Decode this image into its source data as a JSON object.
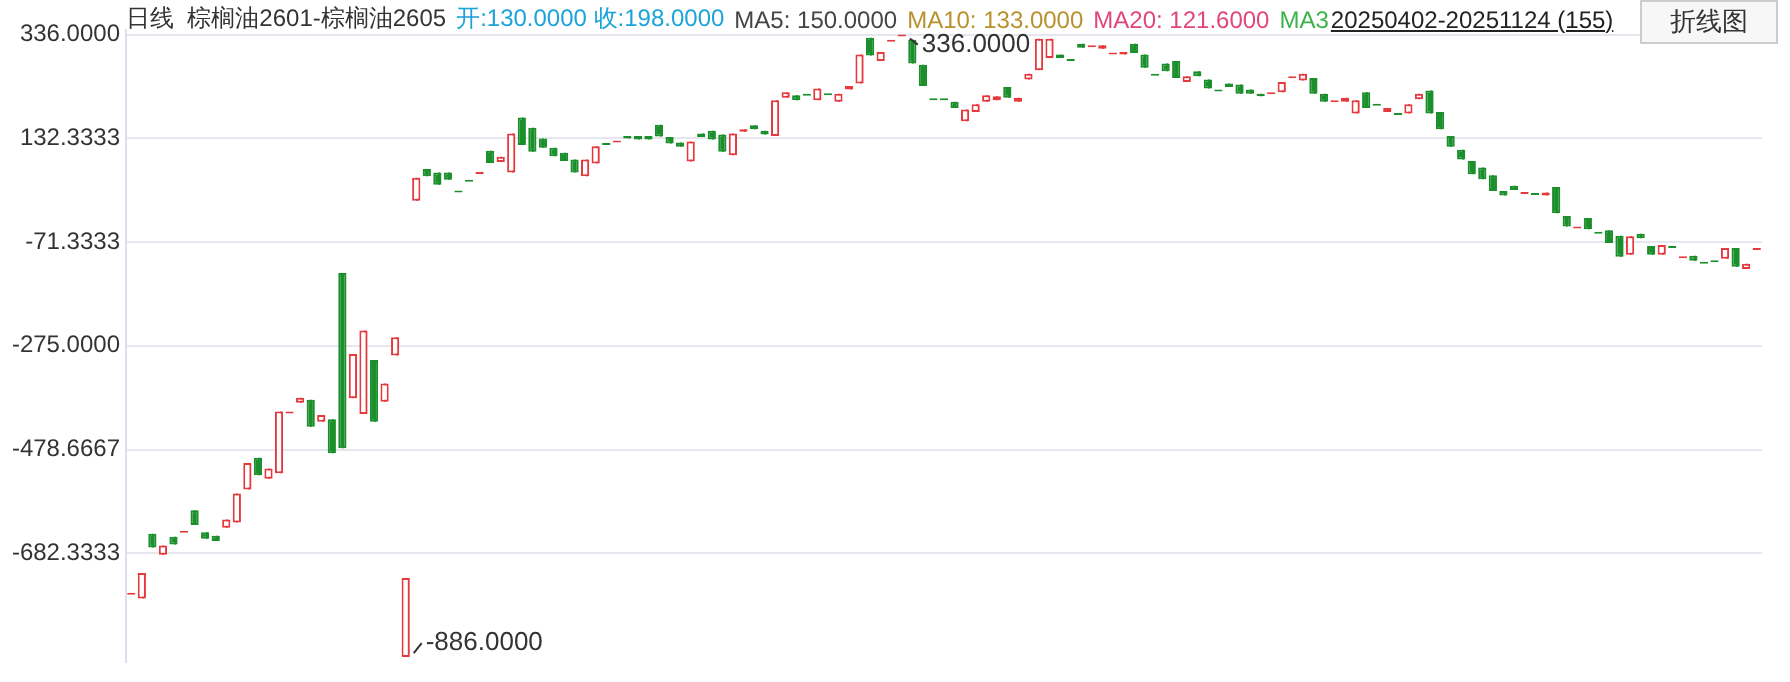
{
  "chart_data": {
    "type": "candlestick",
    "title": "日线  棕榈油2601-棕榈油2605",
    "annotations": [
      "开:130.0000 收:198.0000",
      "MA5: 150.0000",
      "MA10: 133.0000",
      "MA20: 121.6000",
      "MA3",
      "20250402-20251124 (155)",
      "折线图",
      "336.0000",
      "-886.0000"
    ],
    "categories": [
      null,
      null,
      null,
      null,
      null,
      null,
      null,
      null,
      null,
      null,
      null,
      null,
      null,
      null,
      null,
      null,
      null,
      null,
      null,
      null,
      null,
      null,
      null,
      null,
      null,
      null,
      null,
      null,
      null,
      null,
      null,
      null,
      null,
      null,
      null,
      null,
      null,
      null,
      null,
      null,
      null,
      null,
      null,
      null,
      null,
      null,
      null,
      null,
      null,
      null,
      null,
      null,
      null,
      null,
      null,
      null,
      null,
      null,
      null,
      null,
      null,
      null,
      null,
      null,
      null,
      null,
      null,
      null,
      null,
      null,
      null,
      null,
      null,
      null,
      null,
      null,
      null,
      null,
      null,
      null,
      null,
      null,
      null,
      null,
      null,
      null,
      null,
      null,
      null,
      null,
      null,
      null,
      null,
      null,
      null,
      null,
      null,
      null,
      null,
      null,
      null,
      null,
      null,
      null,
      null,
      null,
      null,
      null,
      null,
      null,
      null,
      null,
      null,
      null,
      null,
      null,
      null,
      null,
      null,
      null,
      null,
      null,
      null,
      null,
      null,
      null,
      null,
      null,
      null,
      null,
      null,
      null,
      null,
      null,
      null,
      null,
      null,
      null,
      null,
      null,
      null,
      null,
      null,
      null,
      null,
      null,
      null,
      null,
      null,
      null,
      null,
      null,
      null,
      null,
      null
    ],
    "ohlc": [
      [
        -760,
        -760,
        -760,
        -760
      ],
      [
        -771,
        -721,
        -771,
        -721
      ],
      [
        -644,
        -644,
        -671,
        -671
      ],
      [
        -685,
        -667,
        -685,
        -667
      ],
      [
        -650,
        -650,
        -665,
        -665
      ],
      [
        -638,
        -638,
        -638,
        -638
      ],
      [
        -598,
        -598,
        -627,
        -627
      ],
      [
        -641,
        -641,
        -654,
        -654
      ],
      [
        -648,
        -648,
        -658,
        -658
      ],
      [
        -632,
        -616,
        -632,
        -616
      ],
      [
        -622,
        -565,
        -622,
        -565
      ],
      [
        -557,
        -505,
        -557,
        -505
      ],
      [
        -495,
        -495,
        -529,
        -529
      ],
      [
        -536,
        -516,
        -536,
        -516
      ],
      [
        -525,
        -404,
        -525,
        -404
      ],
      [
        -404,
        -404,
        -404,
        -404
      ],
      [
        -387,
        -377,
        -387,
        -377
      ],
      [
        -381,
        -381,
        -434,
        -434
      ],
      [
        -424,
        -411,
        -424,
        -411
      ],
      [
        -419,
        -419,
        -486,
        -486
      ],
      [
        -132,
        -132,
        -476,
        -476
      ],
      [
        -378,
        -291,
        -378,
        -291
      ],
      [
        -409,
        -245,
        -409,
        -245
      ],
      [
        -303,
        -303,
        -424,
        -424
      ],
      [
        -385,
        -349,
        -385,
        -349
      ],
      [
        -294,
        -258,
        -294,
        -258
      ],
      [
        -886,
        -731,
        -886,
        -731
      ],
      [
        10,
        55,
        10,
        55
      ],
      [
        72,
        72,
        58,
        58
      ],
      [
        65,
        65,
        41,
        41
      ],
      [
        65,
        65,
        51,
        51
      ],
      [
        30,
        30,
        30,
        30
      ],
      [
        51,
        51,
        51,
        51
      ],
      [
        66,
        66,
        66,
        66
      ],
      [
        108,
        108,
        84,
        84
      ],
      [
        86,
        96,
        86,
        96
      ],
      [
        65,
        142,
        65,
        142
      ],
      [
        173,
        173,
        119,
        119
      ],
      [
        153,
        153,
        106,
        106
      ],
      [
        132,
        132,
        114,
        114
      ],
      [
        114,
        114,
        97,
        97
      ],
      [
        104,
        104,
        88,
        88
      ],
      [
        91,
        91,
        65,
        65
      ],
      [
        58,
        91,
        58,
        91
      ],
      [
        83,
        117,
        83,
        117
      ],
      [
        123,
        123,
        123,
        123
      ],
      [
        128,
        128,
        128,
        128
      ],
      [
        137,
        137,
        132,
        132
      ],
      [
        137,
        137,
        130,
        130
      ],
      [
        137,
        137,
        130,
        130
      ],
      [
        159,
        159,
        136,
        136
      ],
      [
        135,
        135,
        122,
        122
      ],
      [
        124,
        124,
        116,
        116
      ],
      [
        87,
        126,
        87,
        126
      ],
      [
        142,
        142,
        135,
        135
      ],
      [
        147,
        147,
        130,
        130
      ],
      [
        140,
        140,
        106,
        106
      ],
      [
        99,
        142,
        99,
        142
      ],
      [
        145,
        150,
        145,
        150
      ],
      [
        158,
        158,
        150,
        150
      ],
      [
        147,
        147,
        140,
        140
      ],
      [
        137,
        207,
        137,
        207
      ],
      [
        212,
        223,
        212,
        223
      ],
      [
        217,
        217,
        207,
        207
      ],
      [
        220,
        220,
        220,
        220
      ],
      [
        207,
        230,
        207,
        230
      ],
      [
        221,
        221,
        221,
        221
      ],
      [
        204,
        220,
        204,
        220
      ],
      [
        228,
        235,
        228,
        235
      ],
      [
        240,
        297,
        240,
        297
      ],
      [
        330,
        330,
        295,
        295
      ],
      [
        284,
        302,
        284,
        302
      ],
      [
        326,
        326,
        326,
        326
      ],
      [
        336,
        336,
        336,
        336
      ],
      [
        326,
        326,
        279,
        279
      ],
      [
        277,
        277,
        235,
        235
      ],
      [
        211,
        211,
        211,
        211
      ],
      [
        211,
        211,
        211,
        211
      ],
      [
        204,
        204,
        192,
        192
      ],
      [
        166,
        189,
        166,
        189
      ],
      [
        184,
        199,
        184,
        199
      ],
      [
        204,
        217,
        204,
        217
      ],
      [
        207,
        215,
        207,
        215
      ],
      [
        233,
        233,
        212,
        212
      ],
      [
        204,
        212,
        204,
        212
      ],
      [
        248,
        259,
        248,
        259
      ],
      [
        266,
        328,
        266,
        328
      ],
      [
        290,
        328,
        290,
        328
      ],
      [
        297,
        297,
        290,
        290
      ],
      [
        288,
        288,
        288,
        288
      ],
      [
        318,
        318,
        310,
        310
      ],
      [
        315,
        315,
        315,
        315
      ],
      [
        308,
        315,
        308,
        315
      ],
      [
        301,
        301,
        301,
        301
      ],
      [
        297,
        302,
        297,
        302
      ],
      [
        318,
        318,
        300,
        300
      ],
      [
        297,
        297,
        271,
        271
      ],
      [
        259,
        259,
        259,
        259
      ],
      [
        279,
        279,
        264,
        264
      ],
      [
        284,
        284,
        251,
        251
      ],
      [
        243,
        254,
        243,
        254
      ],
      [
        264,
        264,
        254,
        254
      ],
      [
        248,
        248,
        230,
        230
      ],
      [
        228,
        228,
        228,
        228
      ],
      [
        240,
        240,
        233,
        233
      ],
      [
        238,
        238,
        220,
        220
      ],
      [
        228,
        228,
        220,
        220
      ],
      [
        220,
        220,
        215,
        215
      ],
      [
        223,
        223,
        223,
        223
      ],
      [
        223,
        243,
        223,
        243
      ],
      [
        254,
        254,
        254,
        254
      ],
      [
        246,
        259,
        246,
        259
      ],
      [
        251,
        251,
        220,
        220
      ],
      [
        220,
        220,
        204,
        204
      ],
      [
        207,
        207,
        207,
        207
      ],
      [
        204,
        212,
        204,
        212
      ],
      [
        181,
        207,
        181,
        207
      ],
      [
        223,
        223,
        192,
        192
      ],
      [
        200,
        200,
        200,
        200
      ],
      [
        184,
        192,
        184,
        192
      ],
      [
        182,
        182,
        182,
        182
      ],
      [
        181,
        199,
        181,
        199
      ],
      [
        209,
        220,
        209,
        220
      ],
      [
        226,
        226,
        181,
        181
      ],
      [
        184,
        184,
        150,
        150
      ],
      [
        137,
        137,
        116,
        116
      ],
      [
        110,
        110,
        91,
        91
      ],
      [
        88,
        88,
        62,
        62
      ],
      [
        75,
        75,
        52,
        52
      ],
      [
        60,
        60,
        29,
        29
      ],
      [
        29,
        29,
        20,
        20
      ],
      [
        39,
        39,
        31,
        31
      ],
      [
        27,
        27,
        27,
        27
      ],
      [
        25,
        25,
        25,
        25
      ],
      [
        20,
        26,
        20,
        26
      ],
      [
        37,
        37,
        -15,
        -15
      ],
      [
        -20,
        -20,
        -41,
        -41
      ],
      [
        -41,
        -41,
        -41,
        -41
      ],
      [
        -24,
        -24,
        -46,
        -46
      ],
      [
        -51,
        -51,
        -51,
        -51
      ],
      [
        -48,
        -48,
        -73,
        -73
      ],
      [
        -59,
        -59,
        -100,
        -100
      ],
      [
        -96,
        -60,
        -96,
        -60
      ],
      [
        -55,
        -55,
        -64,
        -64
      ],
      [
        -79,
        -79,
        -96,
        -96
      ],
      [
        -96,
        -77,
        -96,
        -77
      ],
      [
        -79,
        -79,
        -79,
        -79
      ],
      [
        -99,
        -99,
        -99,
        -99
      ],
      [
        -98,
        -98,
        -108,
        -108
      ],
      [
        -110,
        -110,
        -110,
        -110
      ],
      [
        -107,
        -107,
        -107,
        -107
      ],
      [
        -104,
        -83,
        -104,
        -83
      ],
      [
        -83,
        -83,
        -120,
        -120
      ],
      [
        -124,
        -114,
        -124,
        -114
      ],
      [
        -83,
        -83,
        -83,
        -83
      ]
    ],
    "colors": [
      "#e5393e",
      "#e5393e",
      "#1b8f2b",
      "#e5393e",
      "#1b8f2b",
      "#e5393e",
      "#1b8f2b",
      "#1b8f2b",
      "#1b8f2b",
      "#e5393e",
      "#e5393e",
      "#e5393e",
      "#1b8f2b",
      "#e5393e",
      "#e5393e",
      "#e5393e",
      "#e5393e",
      "#1b8f2b",
      "#e5393e",
      "#1b8f2b",
      "#1b8f2b",
      "#e5393e",
      "#e5393e",
      "#1b8f2b",
      "#e5393e",
      "#e5393e",
      "#e5393e",
      "#e5393e",
      "#1b8f2b",
      "#1b8f2b",
      "#1b8f2b",
      "#1b8f2b",
      "#1b8f2b",
      "#e5393e",
      "#1b8f2b",
      "#e5393e",
      "#e5393e",
      "#1b8f2b",
      "#1b8f2b",
      "#1b8f2b",
      "#1b8f2b",
      "#1b8f2b",
      "#1b8f2b",
      "#e5393e",
      "#e5393e",
      "#1b8f2b",
      "#e5393e",
      "#1b8f2b",
      "#1b8f2b",
      "#1b8f2b",
      "#1b8f2b",
      "#1b8f2b",
      "#1b8f2b",
      "#e5393e",
      "#1b8f2b",
      "#1b8f2b",
      "#1b8f2b",
      "#e5393e",
      "#e5393e",
      "#1b8f2b",
      "#1b8f2b",
      "#e5393e",
      "#e5393e",
      "#1b8f2b",
      "#1b8f2b",
      "#e5393e",
      "#1b8f2b",
      "#e5393e",
      "#e5393e",
      "#e5393e",
      "#1b8f2b",
      "#e5393e",
      "#e5393e",
      "#e5393e",
      "#1b8f2b",
      "#1b8f2b",
      "#1b8f2b",
      "#1b8f2b",
      "#1b8f2b",
      "#e5393e",
      "#e5393e",
      "#e5393e",
      "#e5393e",
      "#1b8f2b",
      "#e5393e",
      "#e5393e",
      "#e5393e",
      "#e5393e",
      "#1b8f2b",
      "#1b8f2b",
      "#1b8f2b",
      "#e5393e",
      "#e5393e",
      "#e5393e",
      "#e5393e",
      "#1b8f2b",
      "#1b8f2b",
      "#1b8f2b",
      "#1b8f2b",
      "#1b8f2b",
      "#e5393e",
      "#1b8f2b",
      "#1b8f2b",
      "#1b8f2b",
      "#1b8f2b",
      "#1b8f2b",
      "#1b8f2b",
      "#1b8f2b",
      "#e5393e",
      "#e5393e",
      "#e5393e",
      "#e5393e",
      "#1b8f2b",
      "#1b8f2b",
      "#e5393e",
      "#e5393e",
      "#e5393e",
      "#1b8f2b",
      "#1b8f2b",
      "#e5393e",
      "#1b8f2b",
      "#e5393e",
      "#e5393e",
      "#1b8f2b",
      "#1b8f2b",
      "#1b8f2b",
      "#1b8f2b",
      "#1b8f2b",
      "#1b8f2b",
      "#1b8f2b",
      "#1b8f2b",
      "#1b8f2b",
      "#e5393e",
      "#1b8f2b",
      "#e5393e",
      "#1b8f2b",
      "#1b8f2b",
      "#e5393e",
      "#1b8f2b",
      "#1b8f2b",
      "#1b8f2b",
      "#1b8f2b",
      "#e5393e",
      "#1b8f2b",
      "#1b8f2b",
      "#e5393e",
      "#1b8f2b",
      "#e5393e",
      "#1b8f2b",
      "#1b8f2b",
      "#1b8f2b",
      "#e5393e",
      "#1b8f2b",
      "#e5393e",
      "#e5393e"
    ],
    "ylim": [
      -895,
      345
    ],
    "yticks": [
      {
        "value": 336,
        "label": "336.0000"
      },
      {
        "value": 132.3333,
        "label": "132.3333"
      },
      {
        "value": -71.3333,
        "label": "-71.3333"
      },
      {
        "value": -275,
        "label": "-275.0000"
      },
      {
        "value": -478.6667,
        "label": "-478.6667"
      },
      {
        "value": -682.3333,
        "label": "-682.3333"
      }
    ],
    "grid": "y",
    "legend": false,
    "tick_labels": "y"
  }
}
